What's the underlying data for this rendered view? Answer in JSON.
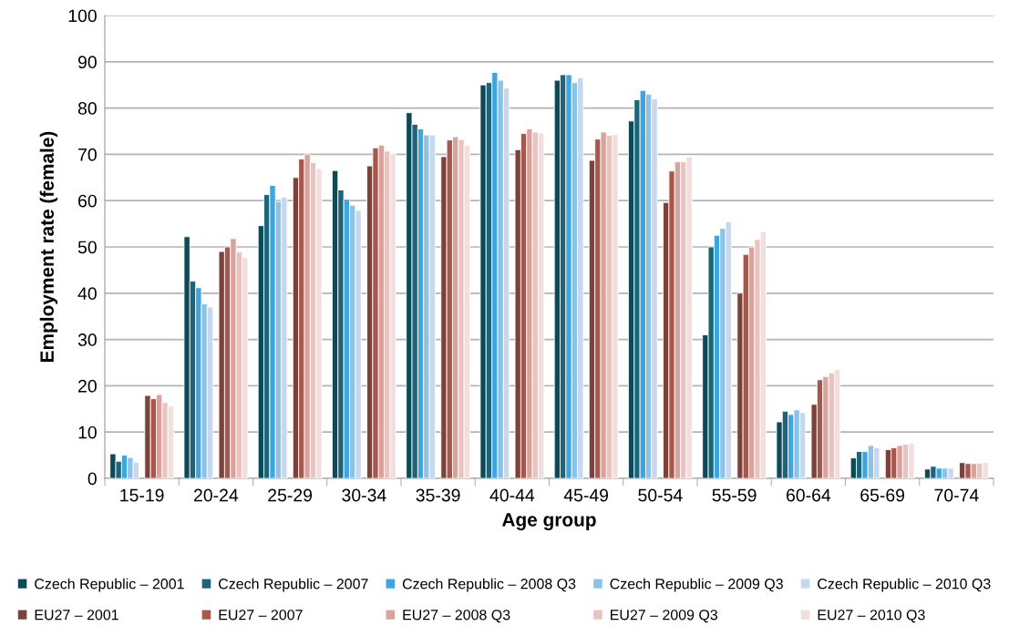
{
  "chart_data": {
    "type": "bar",
    "xlabel": "Age group",
    "ylabel": "Employment rate (female)",
    "categories": [
      "15-19",
      "20-24",
      "25-29",
      "30-34",
      "35-39",
      "40-44",
      "45-49",
      "50-54",
      "55-59",
      "60-64",
      "65-69",
      "70-74"
    ],
    "ylim": [
      0,
      100
    ],
    "yticks": [
      0,
      10,
      20,
      30,
      40,
      50,
      60,
      70,
      80,
      90,
      100
    ],
    "grid": "y",
    "legend": "bottom",
    "series": [
      {
        "name": "Czech Republic – 2001",
        "color": "#0b4a56",
        "values": [
          5.3,
          52.2,
          54.6,
          66.5,
          79,
          85,
          86,
          77.2,
          31,
          12.2,
          4.4,
          2.0
        ]
      },
      {
        "name": "Czech Republic – 2007",
        "color": "#1d6478",
        "values": [
          3.7,
          42.6,
          61.3,
          62.3,
          76.5,
          85.5,
          87.2,
          81.8,
          50,
          14.5,
          5.8,
          2.6
        ]
      },
      {
        "name": "Czech Republic – 2008 Q3",
        "color": "#3ea6dd",
        "values": [
          5,
          41.2,
          63.3,
          60.3,
          75.5,
          87.7,
          87.2,
          83.8,
          52.5,
          13.8,
          5.8,
          2.2
        ]
      },
      {
        "name": "Czech Republic – 2009 Q3",
        "color": "#8cc2e8",
        "values": [
          4.5,
          37.7,
          59.8,
          59,
          74.2,
          86,
          85.5,
          83,
          54,
          14.8,
          7.1,
          2.2
        ]
      },
      {
        "name": "Czech Republic – 2010 Q3",
        "color": "#c5d8ee",
        "values": [
          3.5,
          37,
          60.8,
          57.9,
          74.2,
          84.3,
          86.5,
          82,
          55.4,
          14.2,
          6.6,
          2.2
        ]
      },
      {
        "name": "EU27 – 2001",
        "color": "#7c4139",
        "values": [
          17.9,
          49,
          65,
          67.5,
          69.5,
          71,
          68.7,
          59.6,
          40,
          16,
          6.2,
          3.4
        ]
      },
      {
        "name": "EU27 – 2007",
        "color": "#a8574c",
        "values": [
          17.2,
          50,
          69,
          71.4,
          73.1,
          74.5,
          73.3,
          66.4,
          48.4,
          21.3,
          6.6,
          3.2
        ]
      },
      {
        "name": "EU27 – 2008 Q3",
        "color": "#d9a39c",
        "values": [
          18.1,
          51.8,
          70,
          72,
          73.8,
          75.5,
          74.8,
          68.4,
          50,
          22,
          7.1,
          3.2
        ]
      },
      {
        "name": "EU27 – 2009 Q3",
        "color": "#e8c3c0",
        "values": [
          16.4,
          48.9,
          68.2,
          70.7,
          73.2,
          74.8,
          74.1,
          68.4,
          51.6,
          22.8,
          7.4,
          3.2
        ]
      },
      {
        "name": "EU27 – 2010 Q3",
        "color": "#f2dedc",
        "values": [
          15.6,
          47.7,
          66.9,
          70.2,
          72,
          74.6,
          74.3,
          69.4,
          53.3,
          23.5,
          7.6,
          3.4
        ]
      }
    ]
  }
}
